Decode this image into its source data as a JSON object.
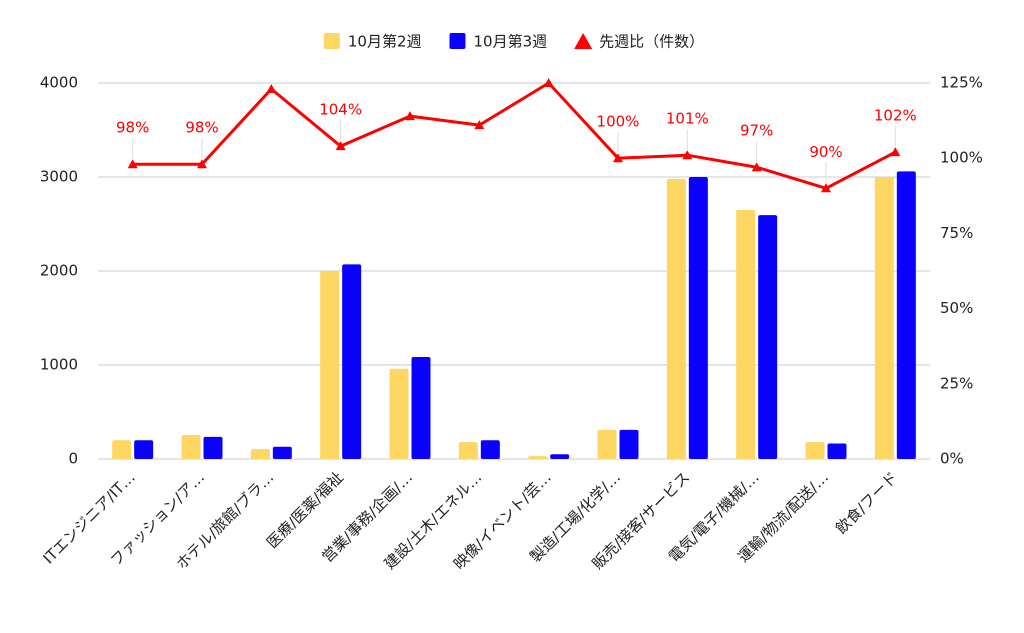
{
  "chart_data": {
    "type": "bar",
    "categories": [
      "ITエンジニア/IT…",
      "ファッション/ア…",
      "ホテル/旅館/ブラ…",
      "医療/医薬/福祉",
      "営業/事務/企画/…",
      "建設/土木/エネル…",
      "映像/イベント/芸…",
      "製造/工場/化学/…",
      "販売/接客/サービス",
      "電気/電子/機械/…",
      "運輸/物流/配送/…",
      "飲食/フード"
    ],
    "series": [
      {
        "name": "10月第2週",
        "color": "#fdd663",
        "values": [
          200,
          255,
          105,
          2000,
          960,
          180,
          30,
          310,
          2980,
          2650,
          180,
          3000
        ]
      },
      {
        "name": "10月第3週",
        "color": "#0a00ff",
        "values": [
          200,
          235,
          130,
          2070,
          1085,
          200,
          50,
          310,
          3000,
          2595,
          165,
          3060
        ]
      },
      {
        "name": "先週比（件数）",
        "color": "#ff0000",
        "type": "line",
        "axis": "y2",
        "values": [
          98,
          98,
          123,
          104,
          114,
          111,
          125,
          100,
          101,
          97,
          90,
          102
        ],
        "value_labels": [
          "98%",
          "98%",
          null,
          "104%",
          null,
          null,
          null,
          "100%",
          "101%",
          "97%",
          "90%",
          "102%"
        ]
      }
    ],
    "ylim": [
      0,
      4000
    ],
    "yticks": [
      0,
      1000,
      2000,
      3000,
      4000
    ],
    "y2lim": [
      0,
      125
    ],
    "y2ticks": [
      {
        "value": 0,
        "label": "0%"
      },
      {
        "value": 25,
        "label": "25%"
      },
      {
        "value": 50,
        "label": "50%"
      },
      {
        "value": 75,
        "label": "75%"
      },
      {
        "value": 100,
        "label": "100%"
      },
      {
        "value": 125,
        "label": "125%"
      }
    ],
    "grid": true,
    "legend": "top"
  }
}
